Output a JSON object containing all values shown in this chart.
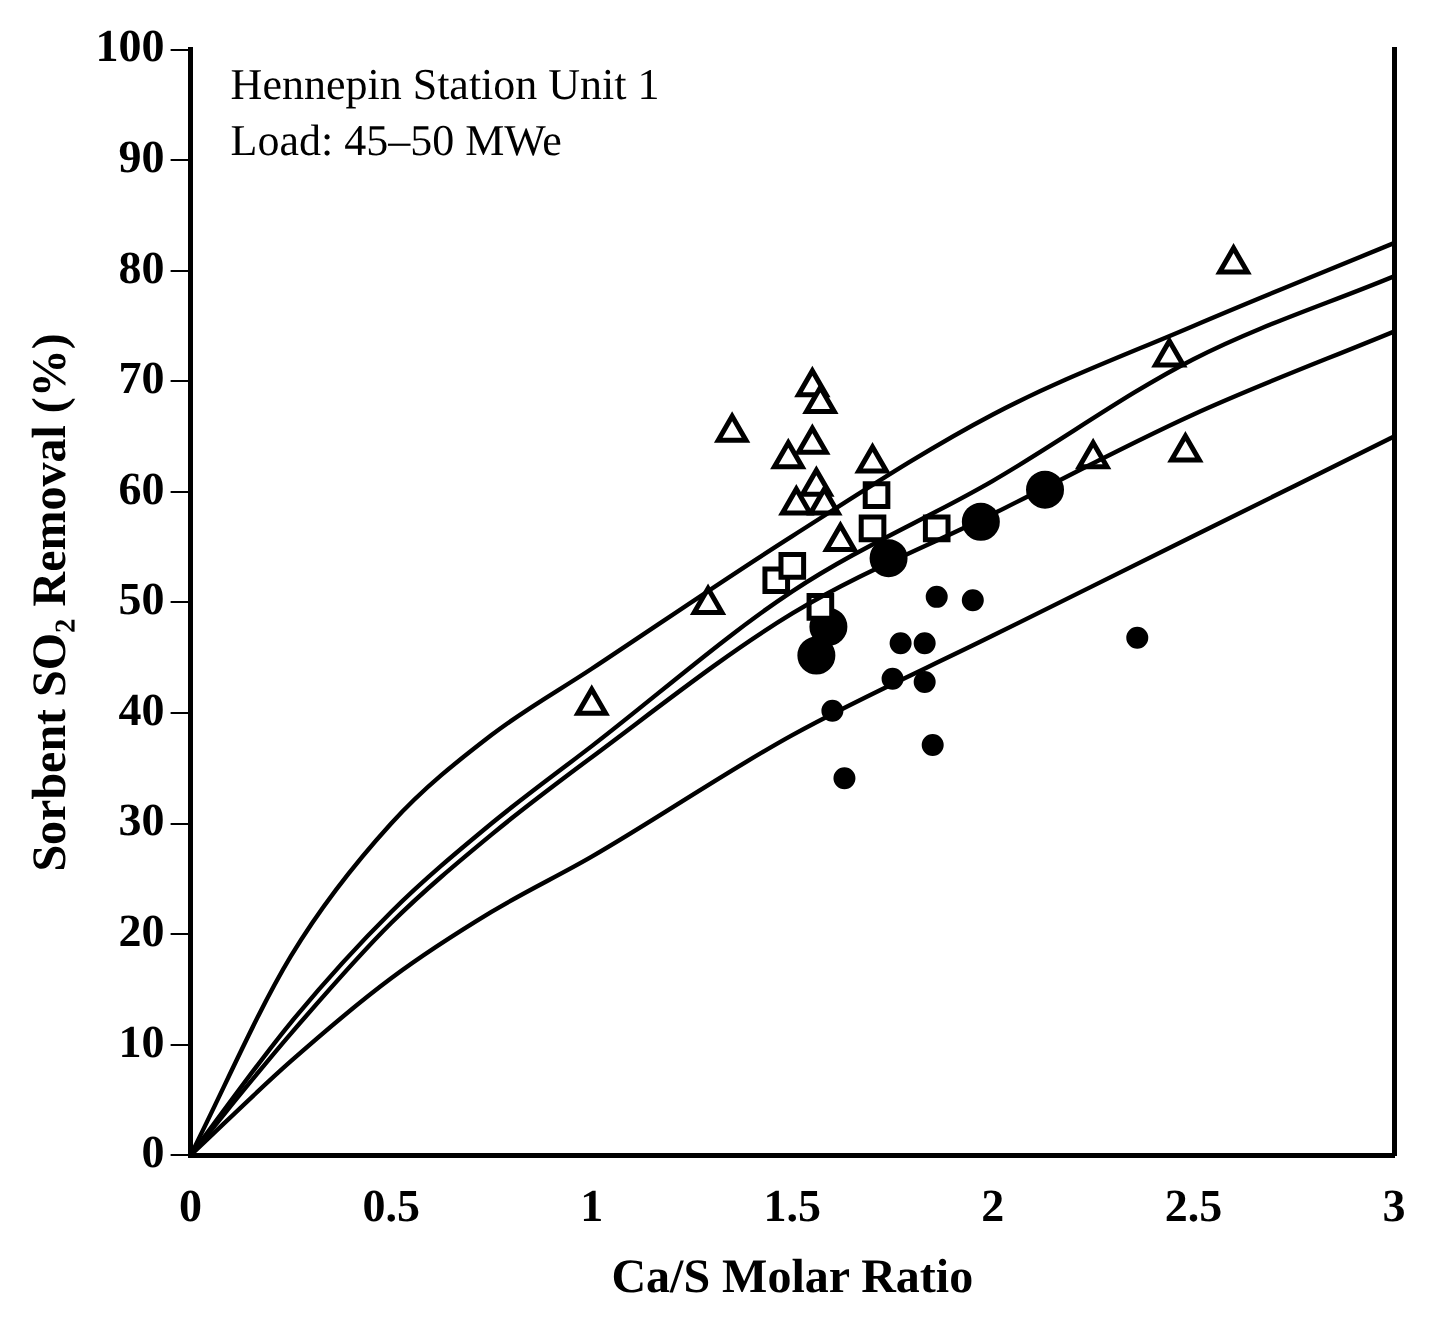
{
  "chart_data": {
    "type": "scatter",
    "xlabel": "Ca/S Molar Ratio",
    "ylabel": "Sorbent SO₂ Removal (%)",
    "annotations": [
      "Hennepin Station Unit 1",
      "Load: 45–50 MWe"
    ],
    "xlim": [
      0,
      3
    ],
    "ylim": [
      0,
      100
    ],
    "xticks": [
      0,
      0.5,
      1,
      1.5,
      2,
      2.5,
      3
    ],
    "yticks": [
      0,
      10,
      20,
      30,
      40,
      50,
      60,
      70,
      80,
      90,
      100
    ],
    "grid": false,
    "legend": false,
    "series": [
      {
        "type": "line",
        "marker": "none",
        "color": "#000000",
        "x": [
          0,
          0.25,
          0.5,
          0.75,
          1,
          1.5,
          2,
          2.5,
          3
        ],
        "values": [
          0,
          18,
          30,
          38,
          44,
          56,
          67,
          75,
          82.5
        ]
      },
      {
        "type": "line",
        "marker": "none",
        "color": "#000000",
        "x": [
          0,
          0.25,
          0.5,
          0.75,
          1,
          1.5,
          2,
          2.5,
          3
        ],
        "values": [
          0,
          12,
          22,
          30,
          37,
          51,
          61,
          72,
          79.5
        ]
      },
      {
        "type": "line",
        "marker": "none",
        "color": "#000000",
        "x": [
          0,
          0.25,
          0.5,
          0.75,
          1,
          1.5,
          2,
          2.5,
          3
        ],
        "values": [
          0,
          11,
          21,
          29,
          36,
          49,
          58,
          67,
          74.5
        ]
      },
      {
        "type": "line",
        "marker": "none",
        "color": "#000000",
        "x": [
          0,
          0.25,
          0.5,
          0.75,
          1,
          1.5,
          2,
          2.5,
          3
        ],
        "values": [
          0,
          8.5,
          16,
          22,
          27,
          38,
          47,
          56,
          65
        ]
      },
      {
        "marker": "triangle",
        "color": "#000000",
        "x": [
          1.0,
          1.29,
          1.35,
          1.49,
          1.55,
          1.57,
          1.55,
          1.51,
          1.56,
          1.58,
          1.62,
          1.7,
          2.25,
          2.44,
          2.48,
          2.6
        ],
        "values": [
          40.7,
          49.8,
          65.4,
          63,
          69.5,
          68,
          64.3,
          58.8,
          60.5,
          58.8,
          55.5,
          62.6,
          63,
          72.2,
          63.6,
          80.6
        ]
      },
      {
        "marker": "square",
        "color": "#000000",
        "x": [
          1.46,
          1.5,
          1.57,
          1.71,
          1.7,
          1.86
        ],
        "values": [
          52,
          53.3,
          49.6,
          59.7,
          56.7,
          56.7
        ]
      },
      {
        "marker": "circle",
        "color": "#000000",
        "x": [
          1.56,
          1.59,
          1.74,
          1.97,
          2.13
        ],
        "values": [
          45.2,
          47.8,
          54,
          57.3,
          60.2
        ]
      },
      {
        "marker": "circle",
        "color": "#000000",
        "x": [
          1.6,
          1.63,
          1.77,
          1.83,
          1.75,
          1.83,
          1.86,
          1.95,
          1.85,
          2.36
        ],
        "values": [
          40.2,
          34.1,
          46.3,
          46.3,
          43.1,
          42.8,
          50.5,
          50.2,
          37.1,
          46.8
        ]
      }
    ]
  }
}
